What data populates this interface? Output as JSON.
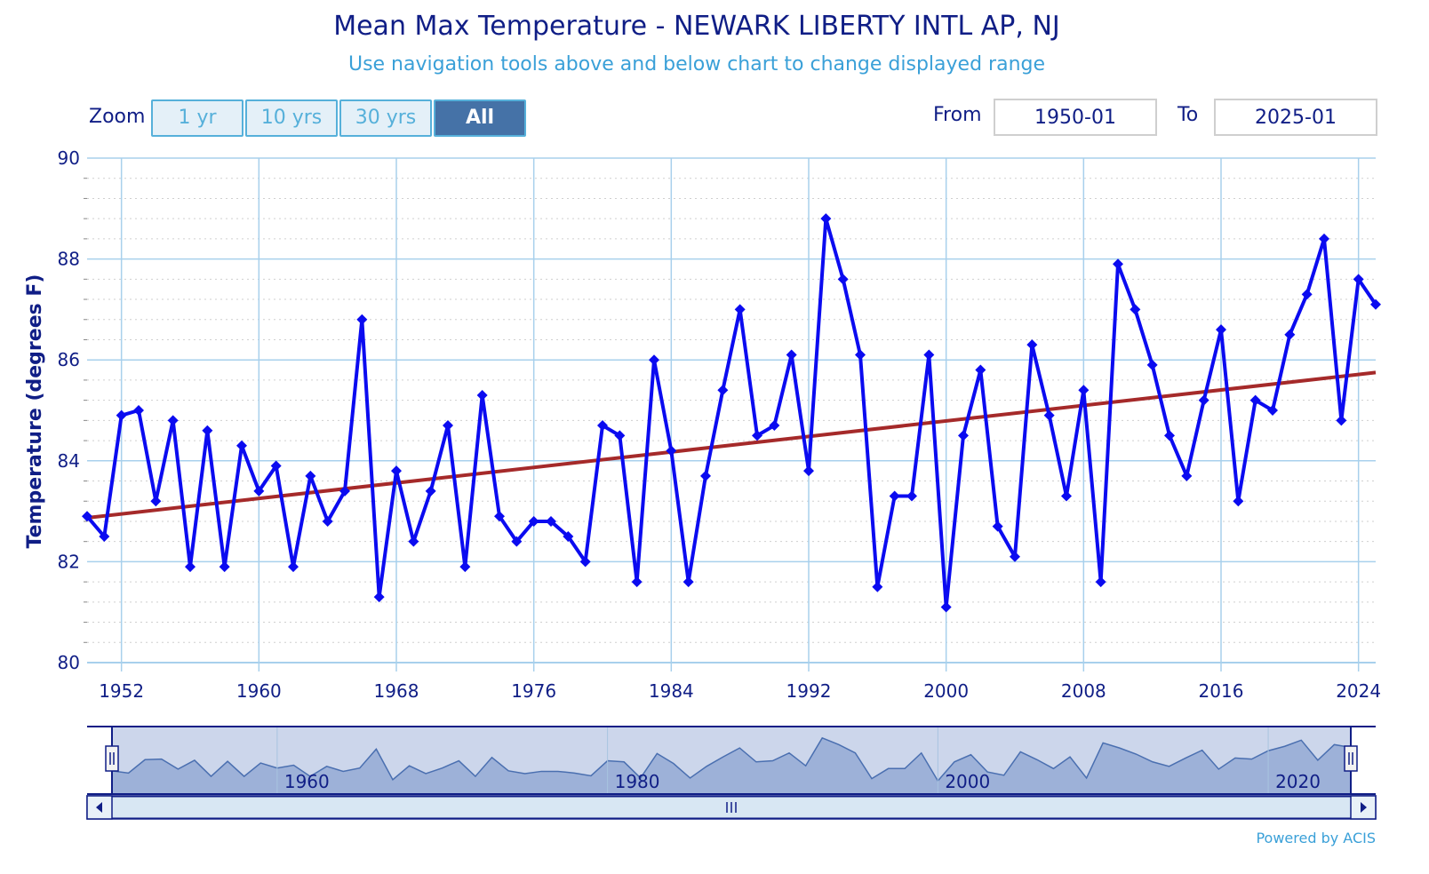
{
  "chart_data": {
    "type": "line",
    "title": "Mean Max Temperature - NEWARK LIBERTY INTL AP, NJ",
    "subtitle": "Use navigation tools above and below chart to change displayed range",
    "xlabel": "",
    "ylabel": "Temperature (degrees F)",
    "ylim": [
      80,
      90
    ],
    "xlim": [
      1950,
      2025
    ],
    "yticks": [
      "80",
      "82",
      "84",
      "86",
      "88",
      "90"
    ],
    "xticks": [
      "1952",
      "1960",
      "1968",
      "1976",
      "1984",
      "1992",
      "2000",
      "2008",
      "2016",
      "2024"
    ],
    "grid": true,
    "series": [
      {
        "color": "#0b0bf0",
        "x": [
          1950,
          1951,
          1952,
          1953,
          1954,
          1955,
          1956,
          1957,
          1958,
          1959,
          1960,
          1961,
          1962,
          1963,
          1964,
          1965,
          1966,
          1967,
          1968,
          1969,
          1970,
          1971,
          1972,
          1973,
          1974,
          1975,
          1976,
          1977,
          1978,
          1979,
          1980,
          1981,
          1982,
          1983,
          1984,
          1985,
          1986,
          1987,
          1988,
          1989,
          1990,
          1991,
          1992,
          1993,
          1994,
          1995,
          1996,
          1997,
          1998,
          1999,
          2000,
          2001,
          2002,
          2003,
          2004,
          2005,
          2006,
          2007,
          2008,
          2009,
          2010,
          2011,
          2012,
          2013,
          2014,
          2015,
          2016,
          2017,
          2018,
          2019,
          2020,
          2021,
          2022,
          2023,
          2024,
          2025
        ],
        "values": [
          82.9,
          82.5,
          84.9,
          85.0,
          83.2,
          84.8,
          81.9,
          84.6,
          81.9,
          84.3,
          83.4,
          83.9,
          81.9,
          83.7,
          82.8,
          83.4,
          86.8,
          81.3,
          83.8,
          82.4,
          83.4,
          84.7,
          81.9,
          85.3,
          82.9,
          82.4,
          82.8,
          82.8,
          82.5,
          82.0,
          84.7,
          84.5,
          81.6,
          86.0,
          84.2,
          81.6,
          83.7,
          85.4,
          87.0,
          84.5,
          84.7,
          86.1,
          83.8,
          88.8,
          87.6,
          86.1,
          81.5,
          83.3,
          83.3,
          86.1,
          81.1,
          84.5,
          85.8,
          82.7,
          82.1,
          86.3,
          84.9,
          83.3,
          85.4,
          81.6,
          87.9,
          87.0,
          85.9,
          84.5,
          83.7,
          85.2,
          86.6,
          83.2,
          85.2,
          85.0,
          86.5,
          87.3,
          88.4,
          84.8,
          87.6,
          87.1
        ]
      },
      {
        "color": "#a52a2a",
        "x": [
          1950,
          2025
        ],
        "values": [
          82.87,
          85.75
        ]
      }
    ]
  },
  "zoom": {
    "label": "Zoom",
    "buttons": [
      "1 yr",
      "10 yrs",
      "30 yrs",
      "All"
    ],
    "active": "All"
  },
  "range": {
    "from_label": "From",
    "from_value": "1950-01",
    "to_label": "To",
    "to_value": "2025-01"
  },
  "navigator": {
    "labels": [
      "1960",
      "1980",
      "2000",
      "2020"
    ]
  },
  "credit": "Powered by ACIS",
  "colors": {
    "title": "#101e86",
    "subtitle": "#3aa0d8",
    "series": "#0b0bf0",
    "trend": "#a52a2a",
    "grid": "#a8d0ec",
    "navigator_fill": "#8ea4d2",
    "active_button": "#4572a7"
  }
}
